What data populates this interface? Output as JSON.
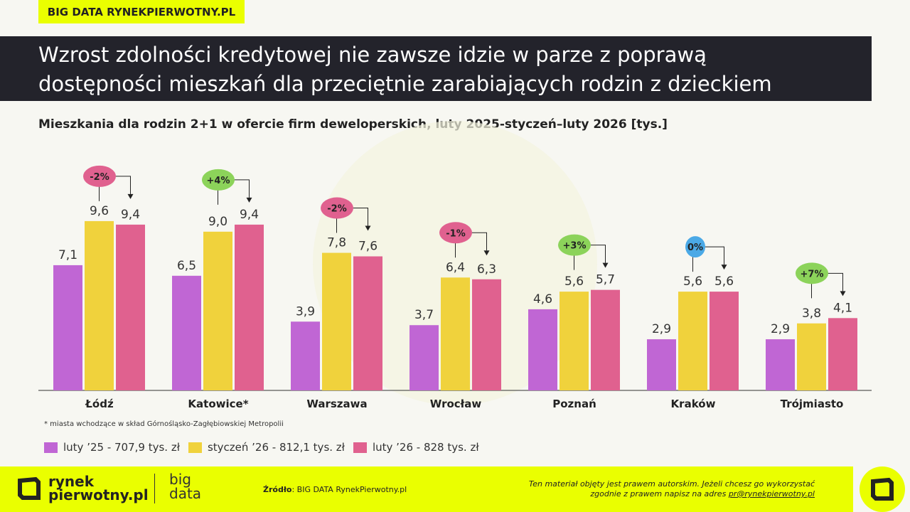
{
  "tag": "BIG DATA RYNEKPIERWOTNY.PL",
  "title_line1": "Wzrost zdolności kredytowej nie zawsze idzie w parze z poprawą",
  "title_line2": "dostępności mieszkań dla przeciętnie zarabiających rodzin z dzieckiem",
  "chart_data": {
    "type": "bar",
    "title": "Mieszkania dla rodzin 2+1 w ofercie firm deweloperskich, luty 2025-styczeń–luty 2026 [tys.]",
    "categories": [
      "Łódź",
      "Katowice*",
      "Warszawa",
      "Wrocław",
      "Poznań",
      "Kraków",
      "Trójmiasto"
    ],
    "series": [
      {
        "name": "luty  ’25 - 707,9 tys. zł",
        "color": "#c066d4",
        "values": [
          7.1,
          6.5,
          3.9,
          3.7,
          4.6,
          2.9,
          2.9
        ],
        "labels": [
          "7,1",
          "6,5",
          "3,9",
          "3,7",
          "4,6",
          "2,9",
          "2,9"
        ]
      },
      {
        "name": "styczeń ’26 - 812,1 tys. zł",
        "color": "#f0d23c",
        "values": [
          9.6,
          9.0,
          7.8,
          6.4,
          5.6,
          5.6,
          3.8
        ],
        "labels": [
          "9,6",
          "9,0",
          "7,8",
          "6,4",
          "5,6",
          "5,6",
          "3,8"
        ]
      },
      {
        "name": "luty ’26 - 828 tys. zł",
        "color": "#e0618f",
        "values": [
          9.4,
          9.4,
          7.6,
          6.3,
          5.7,
          5.6,
          4.1
        ],
        "labels": [
          "9,4",
          "9,4",
          "7,6",
          "6,3",
          "5,7",
          "5,6",
          "4,1"
        ]
      }
    ],
    "changes": [
      "-2%",
      "+4%",
      "-2%",
      "-1%",
      "+3%",
      "0%",
      "+7%"
    ],
    "change_colors": [
      "#e0618f",
      "#8cd35a",
      "#e0618f",
      "#e0618f",
      "#8cd35a",
      "#4ba9e6",
      "#8cd35a"
    ],
    "ylim": [
      0,
      10
    ],
    "grid": false,
    "legend": "bottom-left"
  },
  "note": "* miasta wchodzące w skład Górnośląsko-Zagłębiowskiej Metropolii",
  "footer": {
    "logo_line1": "rynek",
    "logo_line2": "pierwotny.pl",
    "bigdata_line1": "big",
    "bigdata_line2": "data",
    "source_label": "Źródło",
    "source_text": ": BIG DATA RynekPierwotny.pl",
    "copyright_line1": "Ten materiał objęty jest prawem autorskim. Jeżeli chcesz go wykorzystać",
    "copyright_line2": "zgodnie z prawem napisz na adres ",
    "email": "pr@rynekpierwotny.pl"
  },
  "colors": {
    "brand": "#eaff00",
    "dark": "#23232b"
  }
}
